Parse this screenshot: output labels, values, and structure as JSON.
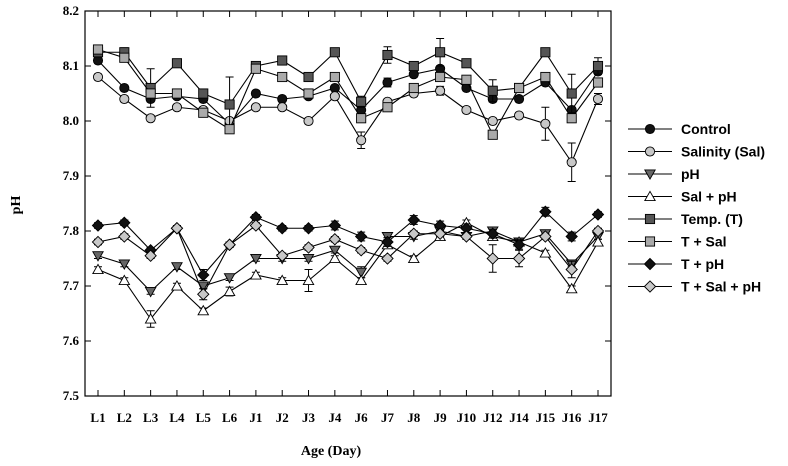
{
  "chart_data": {
    "type": "line",
    "xlabel": "Age (Day)",
    "ylabel": "pH",
    "ylim": [
      7.5,
      8.2
    ],
    "yticks": [
      "7.5",
      "7.6",
      "7.7",
      "7.8",
      "7.9",
      "8.0",
      "8.1",
      "8.2"
    ],
    "categories": [
      "L1",
      "L2",
      "L3",
      "L4",
      "L5",
      "L6",
      "J1",
      "J2",
      "J3",
      "J4",
      "J6",
      "J7",
      "J8",
      "J9",
      "J10",
      "J12",
      "J14",
      "J15",
      "J16",
      "J17"
    ],
    "legend_position": "right",
    "grid": false,
    "series": [
      {
        "name": "Control",
        "marker": "circle",
        "fill": "#111111",
        "values": [
          8.11,
          8.06,
          8.04,
          8.045,
          8.04,
          7.995,
          8.05,
          8.04,
          8.045,
          8.06,
          8.02,
          8.07,
          8.085,
          8.095,
          8.06,
          8.04,
          8.04,
          8.07,
          8.02,
          8.09
        ],
        "errors": [
          0.005,
          0.005,
          0.005,
          0.005,
          0.005,
          0.005,
          0.005,
          0.005,
          0.005,
          0.005,
          0.005,
          0.008,
          0.005,
          0.005,
          0.005,
          0.005,
          0.005,
          0.005,
          0.005,
          0.005
        ]
      },
      {
        "name": "Salinity (Sal)",
        "marker": "circle",
        "fill": "#c8c8c8",
        "values": [
          8.08,
          8.04,
          8.005,
          8.025,
          8.02,
          8.0,
          8.025,
          8.025,
          8.0,
          8.045,
          7.965,
          8.035,
          8.05,
          8.055,
          8.02,
          8.0,
          8.01,
          7.995,
          7.925,
          8.04
        ],
        "errors": [
          0.005,
          0.005,
          0.005,
          0.005,
          0.005,
          0.005,
          0.005,
          0.005,
          0.005,
          0.005,
          0.015,
          0.005,
          0.005,
          0.008,
          0.005,
          0.005,
          0.005,
          0.03,
          0.035,
          0.01
        ]
      },
      {
        "name": "pH",
        "marker": "triangle-down",
        "fill": "#666666",
        "values": [
          7.755,
          7.74,
          7.69,
          7.735,
          7.7,
          7.715,
          7.75,
          7.75,
          7.75,
          7.765,
          7.725,
          7.79,
          7.79,
          7.8,
          7.79,
          7.8,
          7.78,
          7.795,
          7.74,
          7.79
        ],
        "errors": [
          0.005,
          0.005,
          0.005,
          0.005,
          0.005,
          0.005,
          0.005,
          0.005,
          0.005,
          0.005,
          0.01,
          0.005,
          0.005,
          0.005,
          0.005,
          0.005,
          0.005,
          0.005,
          0.005,
          0.005
        ]
      },
      {
        "name": "Sal + pH",
        "marker": "triangle-up",
        "fill": "#ffffff",
        "values": [
          7.73,
          7.71,
          7.64,
          7.7,
          7.655,
          7.69,
          7.72,
          7.71,
          7.71,
          7.75,
          7.71,
          7.775,
          7.75,
          7.79,
          7.815,
          7.79,
          7.78,
          7.76,
          7.695,
          7.78
        ],
        "errors": [
          0.005,
          0.005,
          0.015,
          0.005,
          0.005,
          0.008,
          0.005,
          0.005,
          0.02,
          0.005,
          0.005,
          0.005,
          0.005,
          0.005,
          0.005,
          0.005,
          0.005,
          0.005,
          0.005,
          0.005
        ]
      },
      {
        "name": "Temp. (T)",
        "marker": "square",
        "fill": "#555555",
        "values": [
          8.125,
          8.125,
          8.06,
          8.105,
          8.05,
          8.03,
          8.1,
          8.11,
          8.08,
          8.125,
          8.035,
          8.12,
          8.1,
          8.125,
          8.105,
          8.055,
          8.06,
          8.125,
          8.05,
          8.1
        ],
        "errors": [
          0.008,
          0.008,
          0.035,
          0.005,
          0.005,
          0.05,
          0.005,
          0.005,
          0.005,
          0.005,
          0.01,
          0.015,
          0.008,
          0.025,
          0.005,
          0.02,
          0.005,
          0.005,
          0.035,
          0.015
        ]
      },
      {
        "name": "T + Sal",
        "marker": "square",
        "fill": "#aaaaaa",
        "values": [
          8.13,
          8.115,
          8.05,
          8.05,
          8.015,
          7.985,
          8.095,
          8.08,
          8.05,
          8.08,
          8.005,
          8.025,
          8.06,
          8.08,
          8.075,
          7.975,
          8.06,
          8.08,
          8.005,
          8.07
        ],
        "errors": [
          0.005,
          0.005,
          0.005,
          0.005,
          0.005,
          0.005,
          0.005,
          0.005,
          0.005,
          0.008,
          0.005,
          0.005,
          0.005,
          0.005,
          0.005,
          0.005,
          0.005,
          0.005,
          0.005,
          0.005
        ]
      },
      {
        "name": "T + pH",
        "marker": "diamond",
        "fill": "#111111",
        "values": [
          7.81,
          7.815,
          7.765,
          7.805,
          7.72,
          7.775,
          7.825,
          7.805,
          7.805,
          7.81,
          7.79,
          7.78,
          7.82,
          7.81,
          7.805,
          7.795,
          7.775,
          7.835,
          7.79,
          7.83
        ],
        "errors": [
          0.005,
          0.005,
          0.005,
          0.005,
          0.01,
          0.005,
          0.005,
          0.005,
          0.005,
          0.008,
          0.008,
          0.008,
          0.008,
          0.008,
          0.008,
          0.008,
          0.008,
          0.008,
          0.008,
          0.005
        ]
      },
      {
        "name": "T + Sal + pH",
        "marker": "diamond",
        "fill": "#c8c8c8",
        "values": [
          7.78,
          7.79,
          7.755,
          7.805,
          7.685,
          7.775,
          7.81,
          7.755,
          7.77,
          7.785,
          7.765,
          7.75,
          7.795,
          7.795,
          7.79,
          7.75,
          7.75,
          7.79,
          7.73,
          7.8
        ],
        "errors": [
          0.005,
          0.005,
          0.005,
          0.005,
          0.01,
          0.005,
          0.005,
          0.005,
          0.005,
          0.005,
          0.005,
          0.005,
          0.005,
          0.005,
          0.005,
          0.025,
          0.015,
          0.005,
          0.015,
          0.005
        ]
      }
    ]
  }
}
